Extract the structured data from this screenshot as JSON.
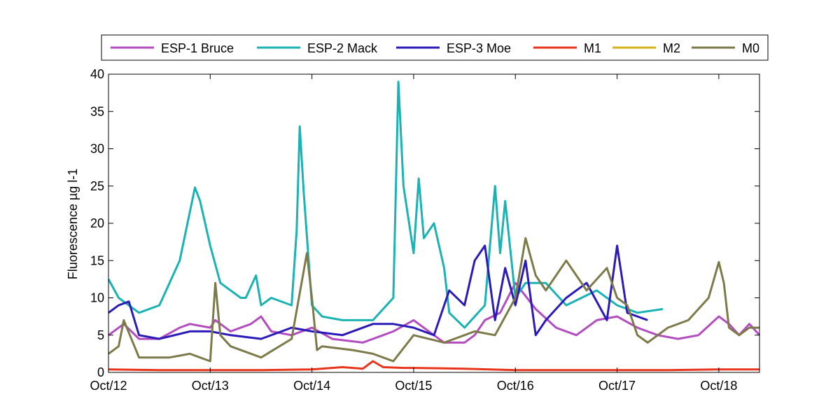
{
  "chart_data": {
    "type": "line",
    "title": "",
    "xlabel": "",
    "ylabel": "Fluorescence µg l-1",
    "ylim": [
      0,
      40
    ],
    "xlim": [
      0,
      6.4
    ],
    "yticks": [
      0,
      5,
      10,
      15,
      20,
      25,
      30,
      35,
      40
    ],
    "xticks": [
      {
        "x": 0,
        "label": "Oct/12"
      },
      {
        "x": 1,
        "label": "Oct/13"
      },
      {
        "x": 2,
        "label": "Oct/14"
      },
      {
        "x": 3,
        "label": "Oct/15"
      },
      {
        "x": 4,
        "label": "Oct/16"
      },
      {
        "x": 5,
        "label": "Oct/17"
      },
      {
        "x": 6,
        "label": "Oct/18"
      }
    ],
    "grid": false,
    "legend_position": "top",
    "series": [
      {
        "name": "ESP-1 Bruce",
        "color": "#b24cbf",
        "x": [
          0,
          0.15,
          0.3,
          0.5,
          0.7,
          0.8,
          1.0,
          1.05,
          1.2,
          1.4,
          1.5,
          1.6,
          1.8,
          2.0,
          2.2,
          2.5,
          2.7,
          2.8,
          3.0,
          3.2,
          3.3,
          3.5,
          3.6,
          3.7,
          3.85,
          4.0,
          4.2,
          4.4,
          4.6,
          4.8,
          5.0,
          5.2,
          5.4,
          5.6,
          5.8,
          6.0,
          6.1,
          6.2,
          6.3,
          6.4
        ],
        "y": [
          5,
          6.5,
          4.5,
          4.5,
          6,
          6.5,
          6,
          7,
          5.5,
          6.5,
          7.5,
          5.5,
          5,
          6,
          4.5,
          4,
          5,
          5.5,
          7,
          5,
          4,
          4,
          5,
          7,
          8,
          12,
          8.5,
          6,
          5,
          7,
          7.5,
          6,
          5,
          4.5,
          5,
          7.5,
          6.5,
          5,
          6.5,
          5
        ]
      },
      {
        "name": "ESP-2 Mack",
        "color": "#1ab2b2",
        "x": [
          0,
          0.1,
          0.3,
          0.5,
          0.7,
          0.85,
          0.9,
          1.0,
          1.1,
          1.3,
          1.35,
          1.45,
          1.5,
          1.6,
          1.8,
          1.85,
          1.88,
          1.92,
          2.0,
          2.1,
          2.3,
          2.6,
          2.8,
          2.85,
          2.9,
          3.0,
          3.05,
          3.1,
          3.2,
          3.3,
          3.35,
          3.5,
          3.7,
          3.8,
          3.85,
          3.9,
          4.0,
          4.1,
          4.3,
          4.5,
          4.8,
          5.0,
          5.2,
          5.45
        ],
        "y": [
          12.5,
          10,
          8,
          9,
          15,
          24.8,
          23,
          17,
          12,
          10,
          10,
          13,
          9,
          10,
          9,
          19,
          33,
          24,
          9,
          7.5,
          7,
          7,
          10,
          39,
          25,
          16,
          26,
          18,
          20,
          14,
          8,
          6,
          9,
          25,
          16,
          23,
          10,
          12,
          12,
          9,
          11,
          9,
          8,
          8.5
        ]
      },
      {
        "name": "ESP-3 Moe",
        "color": "#2a1ab8",
        "x": [
          0,
          0.1,
          0.2,
          0.3,
          0.5,
          0.8,
          1.0,
          1.2,
          1.5,
          1.8,
          2.0,
          2.3,
          2.6,
          2.8,
          3.0,
          3.2,
          3.35,
          3.5,
          3.6,
          3.7,
          3.8,
          3.9,
          4.0,
          4.1,
          4.2,
          4.3,
          4.5,
          4.7,
          4.9,
          5.0,
          5.1,
          5.3
        ],
        "y": [
          8,
          9,
          9.5,
          5,
          4.5,
          5.5,
          5.5,
          5,
          4.5,
          6,
          5.5,
          5,
          6.5,
          6.5,
          6,
          5,
          11,
          9,
          15,
          17,
          7,
          14,
          9,
          15,
          5,
          7,
          10,
          12,
          7,
          17,
          8,
          7
        ]
      },
      {
        "name": "M1",
        "color": "#e8341a",
        "x": [
          0,
          0.5,
          1.0,
          1.5,
          2.0,
          2.3,
          2.5,
          2.6,
          2.7,
          2.9,
          3.0,
          3.5,
          4.0,
          4.5,
          5.0,
          5.5,
          6.0,
          6.4
        ],
        "y": [
          0.4,
          0.3,
          0.3,
          0.3,
          0.4,
          0.7,
          0.5,
          1.5,
          0.7,
          0.6,
          0.6,
          0.5,
          0.3,
          0.3,
          0.3,
          0.3,
          0.4,
          0.4
        ]
      },
      {
        "name": "M2",
        "color": "#d4b01a",
        "x": [],
        "y": []
      },
      {
        "name": "M0",
        "color": "#7d7a4a",
        "x": [
          0,
          0.1,
          0.15,
          0.3,
          0.6,
          0.8,
          1.0,
          1.05,
          1.1,
          1.2,
          1.5,
          1.8,
          1.95,
          2.0,
          2.05,
          2.1,
          2.4,
          2.6,
          2.8,
          3.0,
          3.3,
          3.5,
          3.6,
          3.8,
          4.0,
          4.1,
          4.2,
          4.3,
          4.5,
          4.7,
          4.9,
          5.0,
          5.1,
          5.2,
          5.3,
          5.5,
          5.7,
          5.9,
          6.0,
          6.05,
          6.1,
          6.2,
          6.3,
          6.4
        ],
        "y": [
          2.5,
          3.5,
          7,
          2,
          2,
          2.5,
          1.5,
          12,
          5,
          3.5,
          2,
          4.5,
          16,
          10,
          3,
          3.5,
          3,
          2.5,
          1.5,
          5,
          4,
          5,
          5.5,
          5,
          10,
          18,
          13,
          11,
          15,
          11,
          14,
          10,
          9,
          5,
          4,
          6,
          7,
          10,
          14.8,
          12,
          6,
          5,
          6,
          6
        ]
      }
    ]
  }
}
